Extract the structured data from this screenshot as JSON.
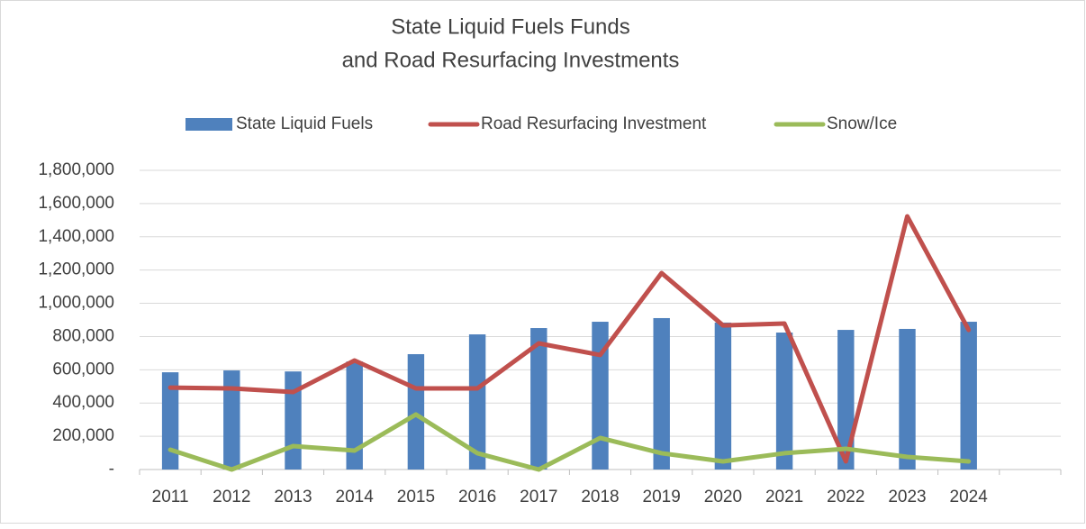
{
  "chart_data": {
    "type": "bar-line",
    "title": [
      "State Liquid Fuels Funds",
      "and Road Resurfacing Investments"
    ],
    "categories": [
      "2011",
      "2012",
      "2013",
      "2014",
      "2015",
      "2016",
      "2017",
      "2018",
      "2019",
      "2020",
      "2021",
      "2022",
      "2023",
      "2024",
      null
    ],
    "series": [
      {
        "name": "State Liquid Fuels",
        "type": "bar",
        "color": "#4f81bd",
        "values": [
          585000,
          596000,
          590000,
          650000,
          694000,
          813000,
          851000,
          889000,
          911000,
          884000,
          824000,
          840000,
          846000,
          889000,
          null
        ]
      },
      {
        "name": "Road Resurfacing Investment",
        "type": "line",
        "color": "#c0504d",
        "values": [
          493000,
          488000,
          466000,
          656000,
          488000,
          488000,
          759000,
          689000,
          1182000,
          867000,
          878000,
          49000,
          1523000,
          840000,
          null
        ]
      },
      {
        "name": "Snow/Ice",
        "type": "line",
        "color": "#9bbb59",
        "values": [
          119000,
          0,
          141000,
          114000,
          331000,
          98000,
          0,
          190000,
          98000,
          49000,
          98000,
          125000,
          76000,
          49000,
          null
        ]
      }
    ],
    "ylim": [
      0,
      1800000
    ],
    "yticks": [
      {
        "value": 0,
        "label": "-"
      },
      {
        "value": 200000,
        "label": "200,000"
      },
      {
        "value": 400000,
        "label": "400,000"
      },
      {
        "value": 600000,
        "label": "600,000"
      },
      {
        "value": 800000,
        "label": "800,000"
      },
      {
        "value": 1000000,
        "label": "1,000,000"
      },
      {
        "value": 1200000,
        "label": "1,200,000"
      },
      {
        "value": 1400000,
        "label": "1,400,000"
      },
      {
        "value": 1600000,
        "label": "1,600,000"
      },
      {
        "value": 1800000,
        "label": "1,800,000"
      }
    ],
    "grid": true,
    "legend": "top"
  }
}
